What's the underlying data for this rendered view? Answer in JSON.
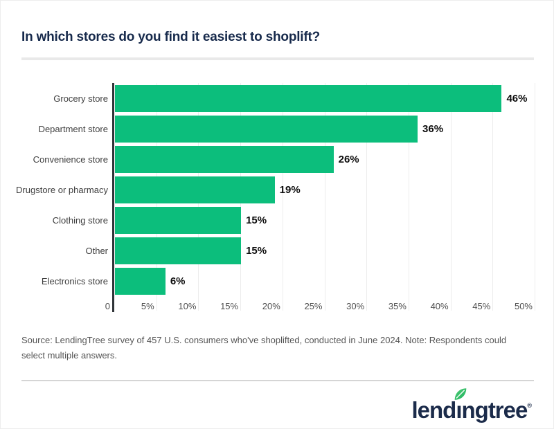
{
  "title": "In which stores do you find it easiest to shoplift?",
  "chart_data": {
    "type": "bar",
    "orientation": "horizontal",
    "title": "In which stores do you find it easiest to shoplift?",
    "categories": [
      "Grocery store",
      "Department store",
      "Convenience store",
      "Drugstore or pharmacy",
      "Clothing store",
      "Other",
      "Electronics store"
    ],
    "values": [
      46,
      36,
      26,
      19,
      15,
      15,
      6
    ],
    "value_labels": [
      "46%",
      "36%",
      "26%",
      "19%",
      "15%",
      "15%",
      "6%"
    ],
    "xlim": [
      0,
      50
    ],
    "x_ticks": [
      "0",
      "5%",
      "10%",
      "15%",
      "20%",
      "25%",
      "30%",
      "35%",
      "40%",
      "45%",
      "50%"
    ],
    "x_tick_values": [
      0,
      5,
      10,
      15,
      20,
      25,
      30,
      35,
      40,
      45,
      50
    ],
    "bar_color": "#0cbe7c",
    "grid": "vertical",
    "legend": "none"
  },
  "source_note": "Source: LendingTree survey of 457 U.S. consumers who've shoplifted, conducted in June 2024. Note: Respondents could select multiple answers.",
  "footer": {
    "brand_prefix": "lend",
    "brand_i": "ı",
    "brand_suffix": "ngtree",
    "trademark": "®"
  },
  "colors": {
    "bar_green": "#0cbe7c",
    "title_navy": "#16294b",
    "axis_dark": "#2f3337",
    "gridline": "#ececec",
    "leaf_green_light": "#4fca74",
    "leaf_green_dark": "#1fb460"
  }
}
